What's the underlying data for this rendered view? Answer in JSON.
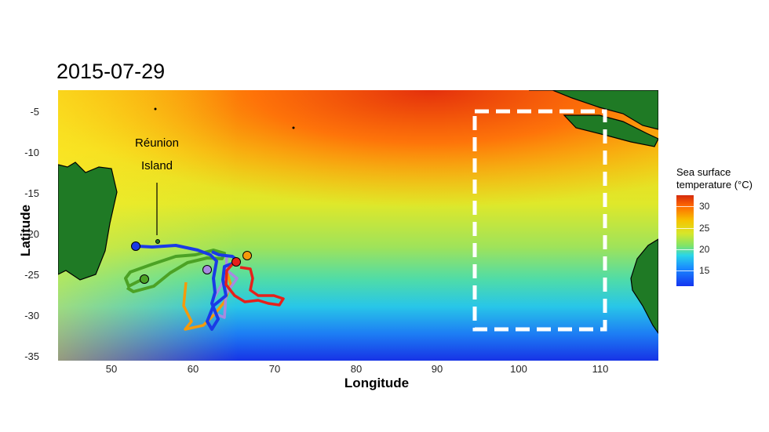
{
  "map": {
    "title": "2015-07-29",
    "xlabel": "Longitude",
    "ylabel": "Latitude",
    "x_ticks": [
      "50",
      "60",
      "70",
      "80",
      "90",
      "100",
      "110"
    ],
    "y_ticks": [
      "-5",
      "-10",
      "-15",
      "-20",
      "-25",
      "-30",
      "-35"
    ],
    "annotation": {
      "line1": "Réunion",
      "line2": "Island"
    },
    "legend": {
      "title_line1": "Sea surface",
      "title_line2": "temperature (°C)",
      "ticks": [
        "30",
        "25",
        "20",
        "15"
      ]
    },
    "colors": {
      "land": "#1f7a25",
      "box": "#ffffff",
      "track_blue": "#1a3be6",
      "track_green": "#4ca225",
      "track_red": "#e6201b",
      "track_orange": "#f59a0b",
      "track_purple": "#a88ae0"
    }
  }
}
